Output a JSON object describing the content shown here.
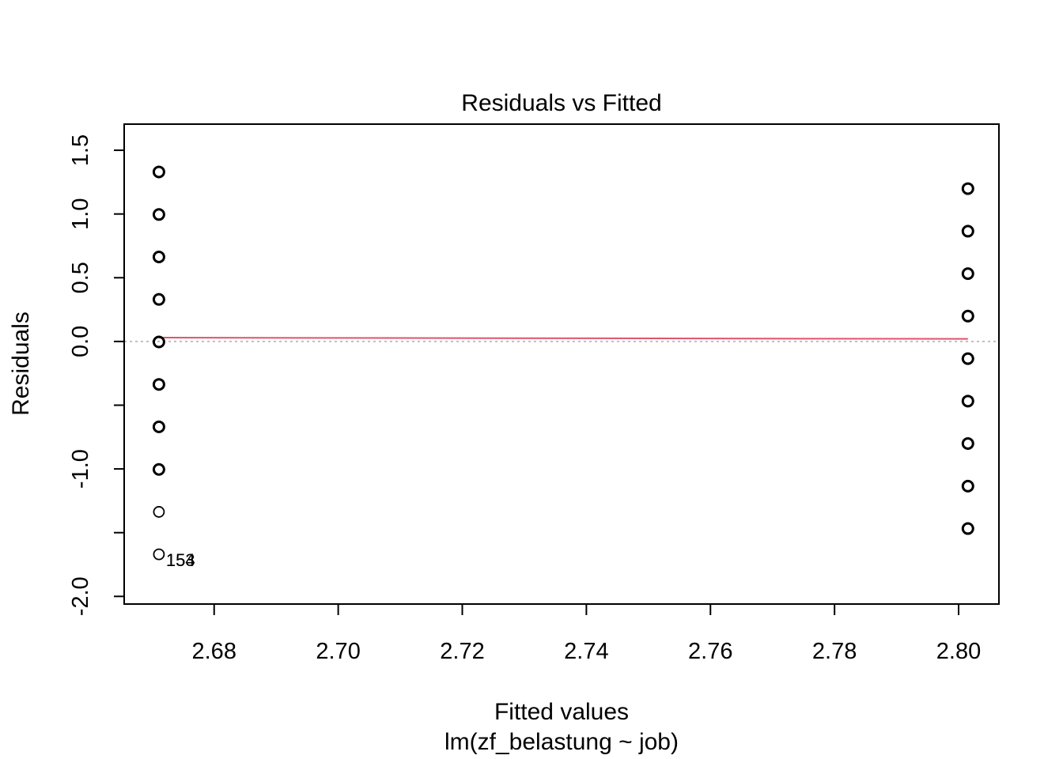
{
  "chart_data": {
    "type": "scatter",
    "title": "Residuals vs Fitted",
    "xlabel": "Fitted values",
    "subtitle": "lm(zf_belastung ~ job)",
    "ylabel": "Residuals",
    "xlim": [
      2.6655,
      2.8065
    ],
    "ylim": [
      -2.06,
      1.705
    ],
    "x_ticks": [
      2.68,
      2.7,
      2.72,
      2.74,
      2.76,
      2.78,
      2.8
    ],
    "x_tick_labels": [
      "2.68",
      "2.70",
      "2.72",
      "2.74",
      "2.76",
      "2.78",
      "2.80"
    ],
    "y_ticks": [
      -2.0,
      -1.5,
      -1.0,
      -0.5,
      0.0,
      0.5,
      1.0,
      1.5
    ],
    "y_tick_labels": [
      "-2.0",
      "",
      "-1.0",
      "",
      "0.0",
      "0.5",
      "1.0",
      "1.5"
    ],
    "grid": false,
    "reference_line": {
      "y": 0,
      "style": "dotted",
      "color": "#bebebe"
    },
    "smoother": {
      "color": "#df536b",
      "x": [
        2.6711,
        2.8015
      ],
      "y": [
        0.03,
        0.02
      ]
    },
    "points": [
      {
        "x": 2.6711,
        "y": 1.33,
        "heavy": true
      },
      {
        "x": 2.6711,
        "y": 0.996,
        "heavy": true
      },
      {
        "x": 2.6711,
        "y": 0.663,
        "heavy": true
      },
      {
        "x": 2.6711,
        "y": 0.33,
        "heavy": true
      },
      {
        "x": 2.6711,
        "y": -0.004,
        "heavy": true
      },
      {
        "x": 2.6711,
        "y": -0.337,
        "heavy": true
      },
      {
        "x": 2.6711,
        "y": -0.67,
        "heavy": true
      },
      {
        "x": 2.6711,
        "y": -1.004,
        "heavy": true
      },
      {
        "x": 2.6711,
        "y": -1.337,
        "heavy": false
      },
      {
        "x": 2.6711,
        "y": -1.67,
        "heavy": false
      },
      {
        "x": 2.8015,
        "y": 1.199,
        "heavy": true
      },
      {
        "x": 2.8015,
        "y": 0.865,
        "heavy": true
      },
      {
        "x": 2.8015,
        "y": 0.532,
        "heavy": true
      },
      {
        "x": 2.8015,
        "y": 0.199,
        "heavy": true
      },
      {
        "x": 2.8015,
        "y": -0.135,
        "heavy": true
      },
      {
        "x": 2.8015,
        "y": -0.468,
        "heavy": true
      },
      {
        "x": 2.8015,
        "y": -0.801,
        "heavy": true
      },
      {
        "x": 2.8015,
        "y": -1.135,
        "heavy": true
      },
      {
        "x": 2.8015,
        "y": -1.468,
        "heavy": true
      }
    ],
    "point_labels": [
      {
        "text": "153",
        "x": 2.6711,
        "y": -1.67
      },
      {
        "text": "154",
        "x": 2.6711,
        "y": -1.67
      }
    ]
  }
}
